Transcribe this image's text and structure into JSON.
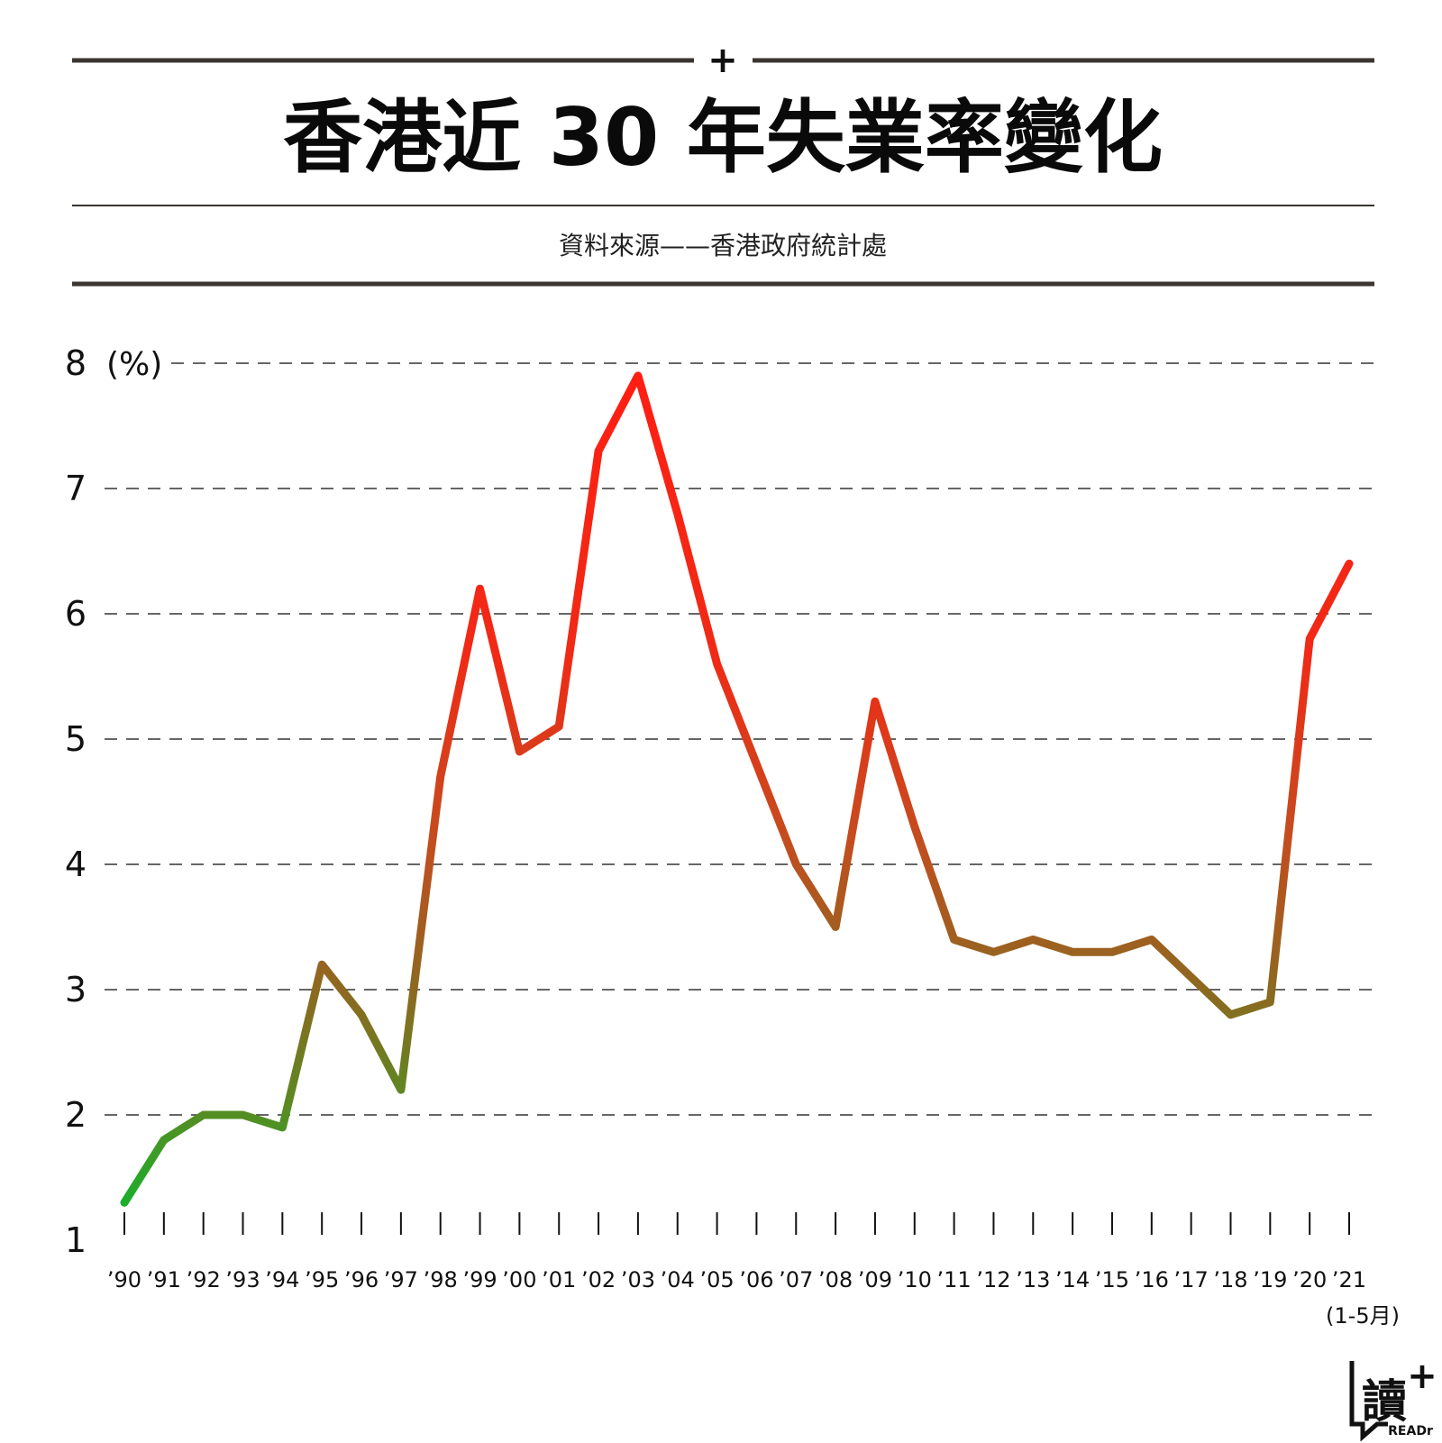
{
  "chart_data": {
    "type": "line",
    "title": "香港近 30 年失業率變化",
    "subtitle": "資料來源——香港政府統計處",
    "ylabel": "(%)",
    "ylim": [
      1,
      8
    ],
    "yticks": [
      1,
      2,
      3,
      4,
      5,
      6,
      7,
      8
    ],
    "grid": true,
    "x_note": "(1-5月)",
    "categories": [
      "’90",
      "’91",
      "’92",
      "’93",
      "’94",
      "’95",
      "’96",
      "’97",
      "’98",
      "’99",
      "’00",
      "’01",
      "’02",
      "’03",
      "’04",
      "’05",
      "’06",
      "’07",
      "’08",
      "’09",
      "’10",
      "’11",
      "’12",
      "’13",
      "’14",
      "’15",
      "’16",
      "’17",
      "’18",
      "’19",
      "’20",
      "’21"
    ],
    "series": [
      {
        "name": "失業率",
        "values": [
          1.3,
          1.8,
          2.0,
          2.0,
          1.9,
          3.2,
          2.8,
          2.2,
          4.7,
          6.2,
          4.9,
          5.1,
          7.3,
          7.9,
          6.8,
          5.6,
          4.8,
          4.0,
          3.5,
          5.3,
          4.3,
          3.4,
          3.3,
          3.4,
          3.3,
          3.3,
          3.4,
          3.1,
          2.8,
          2.9,
          5.8,
          6.4
        ]
      }
    ],
    "colors": {
      "low": "#18b02a",
      "mid": "#8a6a20",
      "high": "#ff1e12"
    }
  },
  "header": {
    "plus_symbol": "+"
  },
  "logo": {
    "main_char": "讀",
    "sub_text": "READr",
    "plus": "+"
  }
}
